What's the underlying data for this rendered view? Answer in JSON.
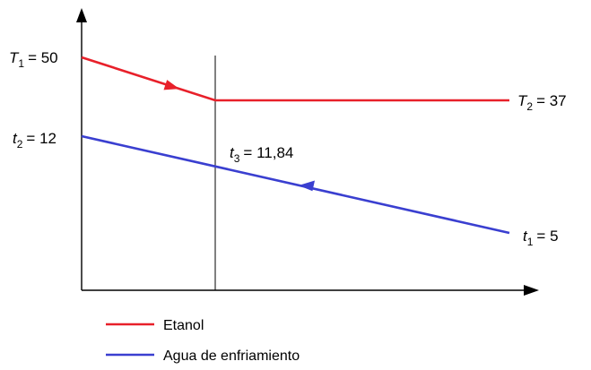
{
  "labels": {
    "T1": {
      "var": "T",
      "sub": "1",
      "value": "= 50"
    },
    "T2": {
      "var": "T",
      "sub": "2",
      "value": "= 37"
    },
    "t2": {
      "var": "t",
      "sub": "2",
      "value": "= 12"
    },
    "t3": {
      "var": "t",
      "sub": "3",
      "value": "= 11,84"
    },
    "t1": {
      "var": "t",
      "sub": "1",
      "value": "= 5"
    }
  },
  "legend": [
    {
      "label": "Etanol",
      "color": "#e8202a"
    },
    {
      "label": "Agua de enfriamiento",
      "color": "#3a3fd0"
    }
  ],
  "colors": {
    "ethanol": "#e8202a",
    "water": "#3a3fd0",
    "axis": "#000000"
  }
}
